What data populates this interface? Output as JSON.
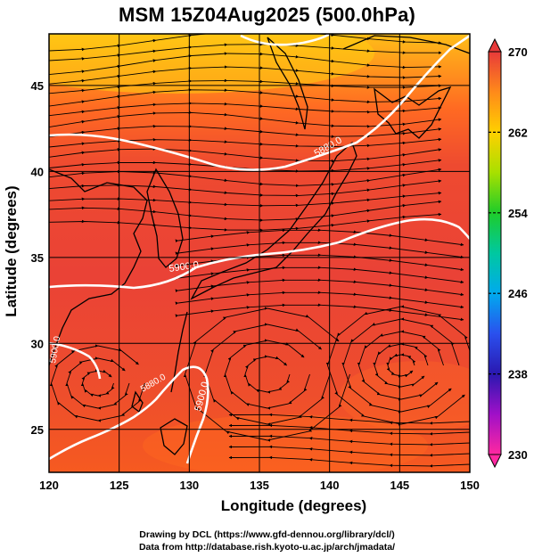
{
  "title": "MSM 15Z04Aug2025 (500.0hPa)",
  "x_axis": {
    "label": "Longitude (degrees)",
    "ticks": [
      "120",
      "125",
      "130",
      "135",
      "140",
      "145",
      "150"
    ],
    "range": [
      120,
      150
    ]
  },
  "y_axis": {
    "label": "Latitude  (degrees)",
    "ticks": [
      "25",
      "30",
      "35",
      "40",
      "45"
    ],
    "range": [
      22.5,
      48
    ]
  },
  "colorbar": {
    "ticks": [
      "270",
      "262",
      "254",
      "246",
      "238",
      "230"
    ],
    "colors": [
      "#e83a3a",
      "#ff8a1a",
      "#ffd000",
      "#a8e000",
      "#1ecc2a",
      "#00c8a0",
      "#00aaee",
      "#2a50ee",
      "#2a18b0",
      "#a010c8",
      "#ff28a0"
    ]
  },
  "contours": [
    {
      "label": "5880.0"
    },
    {
      "label": "5900.0"
    },
    {
      "label": "5900.0"
    },
    {
      "label": "5900.0"
    },
    {
      "label": "5880.0"
    }
  ],
  "footer": {
    "line1": "Drawing by DCL (https://www.gfd-dennou.org/library/dcl/)",
    "line2": "Data from http://database.rish.kyoto-u.ac.jp/arch/jmadata/"
  }
}
